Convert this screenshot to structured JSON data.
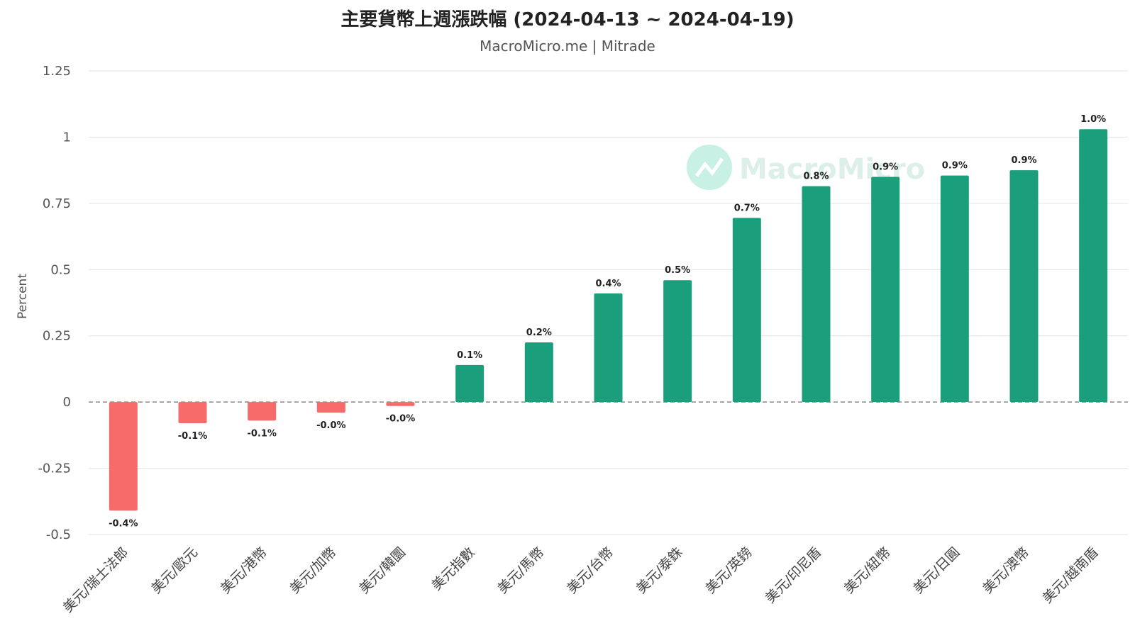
{
  "watermark": {
    "text": "MacroMicro"
  },
  "colors": {
    "positive": "#1a9e7b",
    "negative": "#f76b6b",
    "grid": "#e3e3e3",
    "zero_line": "#888888",
    "watermark": "#c9f0e4"
  },
  "chart_data": {
    "type": "bar",
    "title": "主要貨幣上週漲跌幅 (2024-04-13 ~ 2024-04-19)",
    "subtitle": "MacroMicro.me | Mitrade",
    "xlabel": "",
    "ylabel": "Percent",
    "ylim": [
      -0.5,
      1.25
    ],
    "yticks": [
      1.25,
      1,
      0.75,
      0.5,
      0.25,
      0,
      -0.25,
      -0.5
    ],
    "ytick_labels": [
      "1.25",
      "1",
      "0.75",
      "0.5",
      "0.25",
      "0",
      "-0.25",
      "-0.5"
    ],
    "grid": true,
    "zero_line_style": "dashed",
    "categories": [
      "美元/瑞士法郎",
      "美元/歐元",
      "美元/港幣",
      "美元/加幣",
      "美元/韓圜",
      "美元指數",
      "美元/馬幣",
      "美元/台幣",
      "美元/泰銖",
      "美元/英鎊",
      "美元/印尼盾",
      "美元/紐幣",
      "美元/日圓",
      "美元/澳幣",
      "美元/越南盾"
    ],
    "values": [
      -0.41,
      -0.08,
      -0.07,
      -0.04,
      -0.015,
      0.14,
      0.225,
      0.41,
      0.46,
      0.695,
      0.815,
      0.85,
      0.855,
      0.875,
      1.03
    ],
    "data_labels": [
      "-0.4%",
      "-0.1%",
      "-0.1%",
      "-0.0%",
      "-0.0%",
      "0.1%",
      "0.2%",
      "0.4%",
      "0.5%",
      "0.7%",
      "0.8%",
      "0.9%",
      "0.9%",
      "0.9%",
      "1.0%"
    ]
  }
}
